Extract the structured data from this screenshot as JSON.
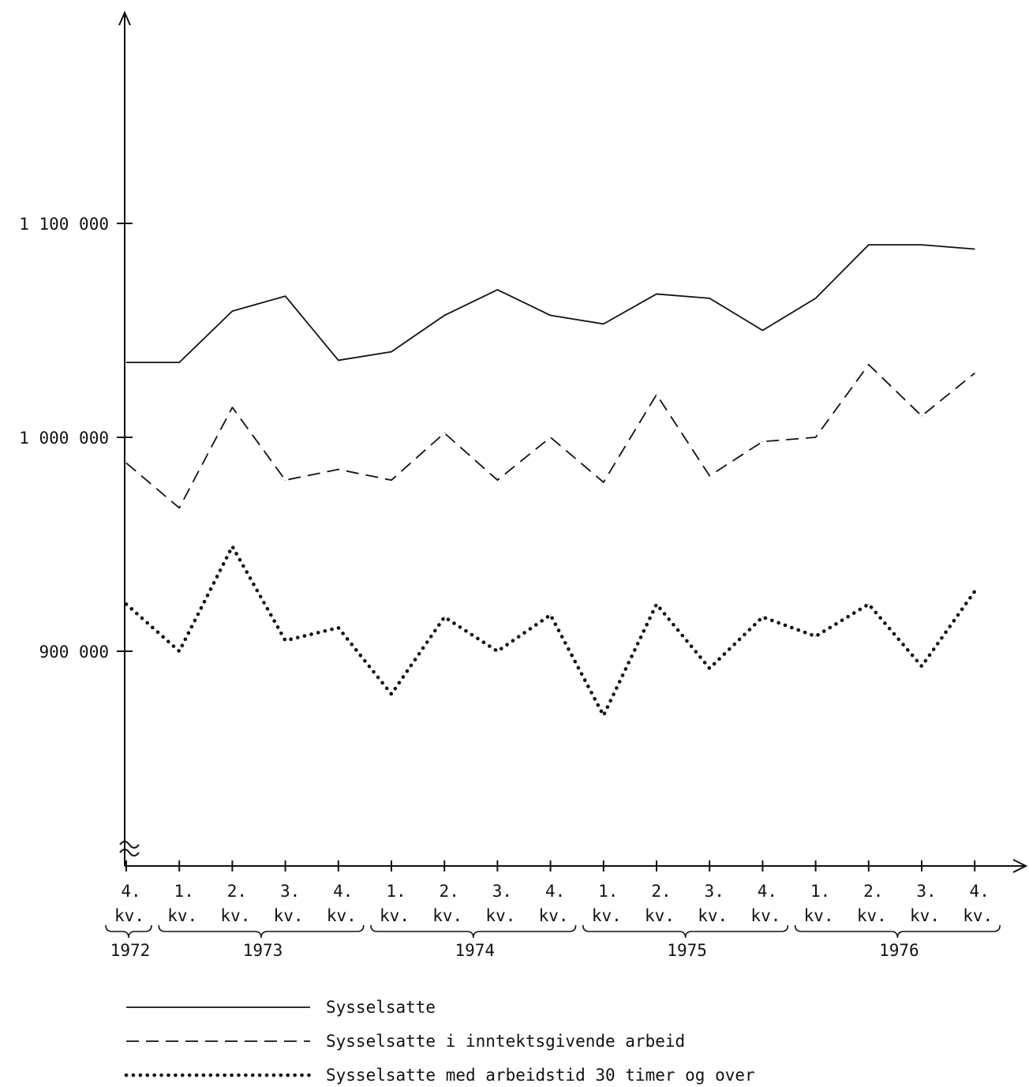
{
  "chart_data": {
    "type": "line",
    "y_ticks": [
      {
        "value": 1100000,
        "label": "1 100 000"
      },
      {
        "value": 1000000,
        "label": "1 000 000"
      },
      {
        "value": 900000,
        "label": "900 000"
      }
    ],
    "ylim": [
      800000,
      1200000
    ],
    "y_axis_break": true,
    "grid": false,
    "legend_position": "bottom",
    "quarters": [
      {
        "q": "4.",
        "kv": "kv."
      },
      {
        "q": "1.",
        "kv": "kv."
      },
      {
        "q": "2.",
        "kv": "kv."
      },
      {
        "q": "3.",
        "kv": "kv."
      },
      {
        "q": "4.",
        "kv": "kv."
      },
      {
        "q": "1.",
        "kv": "kv."
      },
      {
        "q": "2.",
        "kv": "kv."
      },
      {
        "q": "3.",
        "kv": "kv."
      },
      {
        "q": "4.",
        "kv": "kv."
      },
      {
        "q": "1.",
        "kv": "kv."
      },
      {
        "q": "2.",
        "kv": "kv."
      },
      {
        "q": "3.",
        "kv": "kv."
      },
      {
        "q": "4.",
        "kv": "kv."
      },
      {
        "q": "1.",
        "kv": "kv."
      },
      {
        "q": "2.",
        "kv": "kv."
      },
      {
        "q": "3.",
        "kv": "kv."
      },
      {
        "q": "4.",
        "kv": "kv."
      }
    ],
    "years": [
      {
        "label": "1972",
        "first_quarter_index": 0,
        "last_quarter_index": 0
      },
      {
        "label": "1973",
        "first_quarter_index": 1,
        "last_quarter_index": 4
      },
      {
        "label": "1974",
        "first_quarter_index": 5,
        "last_quarter_index": 8
      },
      {
        "label": "1975",
        "first_quarter_index": 9,
        "last_quarter_index": 12
      },
      {
        "label": "1976",
        "first_quarter_index": 13,
        "last_quarter_index": 16
      }
    ],
    "series": [
      {
        "name": "Sysselsatte",
        "style": "solid",
        "values": [
          1035000,
          1035000,
          1059000,
          1066000,
          1036000,
          1040000,
          1057000,
          1069000,
          1057000,
          1053000,
          1067000,
          1065000,
          1050000,
          1065000,
          1090000,
          1090000,
          1088000
        ]
      },
      {
        "name": "Sysselsatte i inntektsgivende arbeid",
        "style": "dashed",
        "values": [
          988000,
          967000,
          1014000,
          980000,
          985000,
          980000,
          1002000,
          980000,
          1000000,
          979000,
          1020000,
          982000,
          998000,
          1000000,
          1034000,
          1010000,
          1030000
        ]
      },
      {
        "name": "Sysselsatte med arbeidstid 30 timer og over",
        "style": "dotted",
        "values": [
          922000,
          900000,
          949000,
          905000,
          911000,
          880000,
          916000,
          900000,
          917000,
          870000,
          922000,
          892000,
          916000,
          907000,
          922000,
          893000,
          928000
        ]
      }
    ]
  }
}
